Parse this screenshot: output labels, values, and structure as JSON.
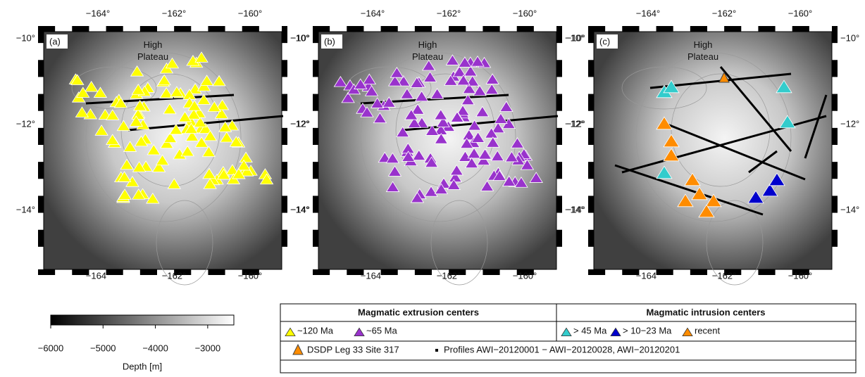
{
  "map": {
    "panels": [
      {
        "label": "(a)",
        "plateau_label": "High Plateau"
      },
      {
        "label": "(b)",
        "plateau_label": "High Plateau"
      },
      {
        "label": "(c)",
        "plateau_label": "High Plateau"
      }
    ],
    "lon_ticks": [
      "−164°",
      "−162°",
      "−160°"
    ],
    "lat_ticks": [
      "−10°",
      "−12°",
      "−14°"
    ],
    "colorbar": {
      "range": [
        -6000,
        -2500
      ],
      "ticks": [
        {
          "value": -6000,
          "label": "−6000"
        },
        {
          "value": -5000,
          "label": "−5000"
        },
        {
          "value": -4000,
          "label": "−4000"
        },
        {
          "value": -3000,
          "label": "−3000"
        }
      ],
      "label": "Depth [m]"
    },
    "legend": {
      "extrusion_title": "Magmatic extrusion centers",
      "intrusion_title": "Magmatic intrusion centers",
      "extrusion_items": [
        {
          "name": "~120 Ma",
          "color": "#ffff00"
        },
        {
          "name": "~65 Ma",
          "color": "#9933cc"
        }
      ],
      "intrusion_items": [
        {
          "name": "> 45 Ma",
          "color": "#33cccc"
        },
        {
          "name": "> 10−23 Ma",
          "color": "#0000cc"
        },
        {
          "name": "recent",
          "color": "#ff8c00"
        }
      ],
      "site_label": "DSDP Leg 33 Site 317",
      "profiles_label": "Profiles AWI−20120001 − AWI−20120028, AWI−20120201"
    }
  }
}
